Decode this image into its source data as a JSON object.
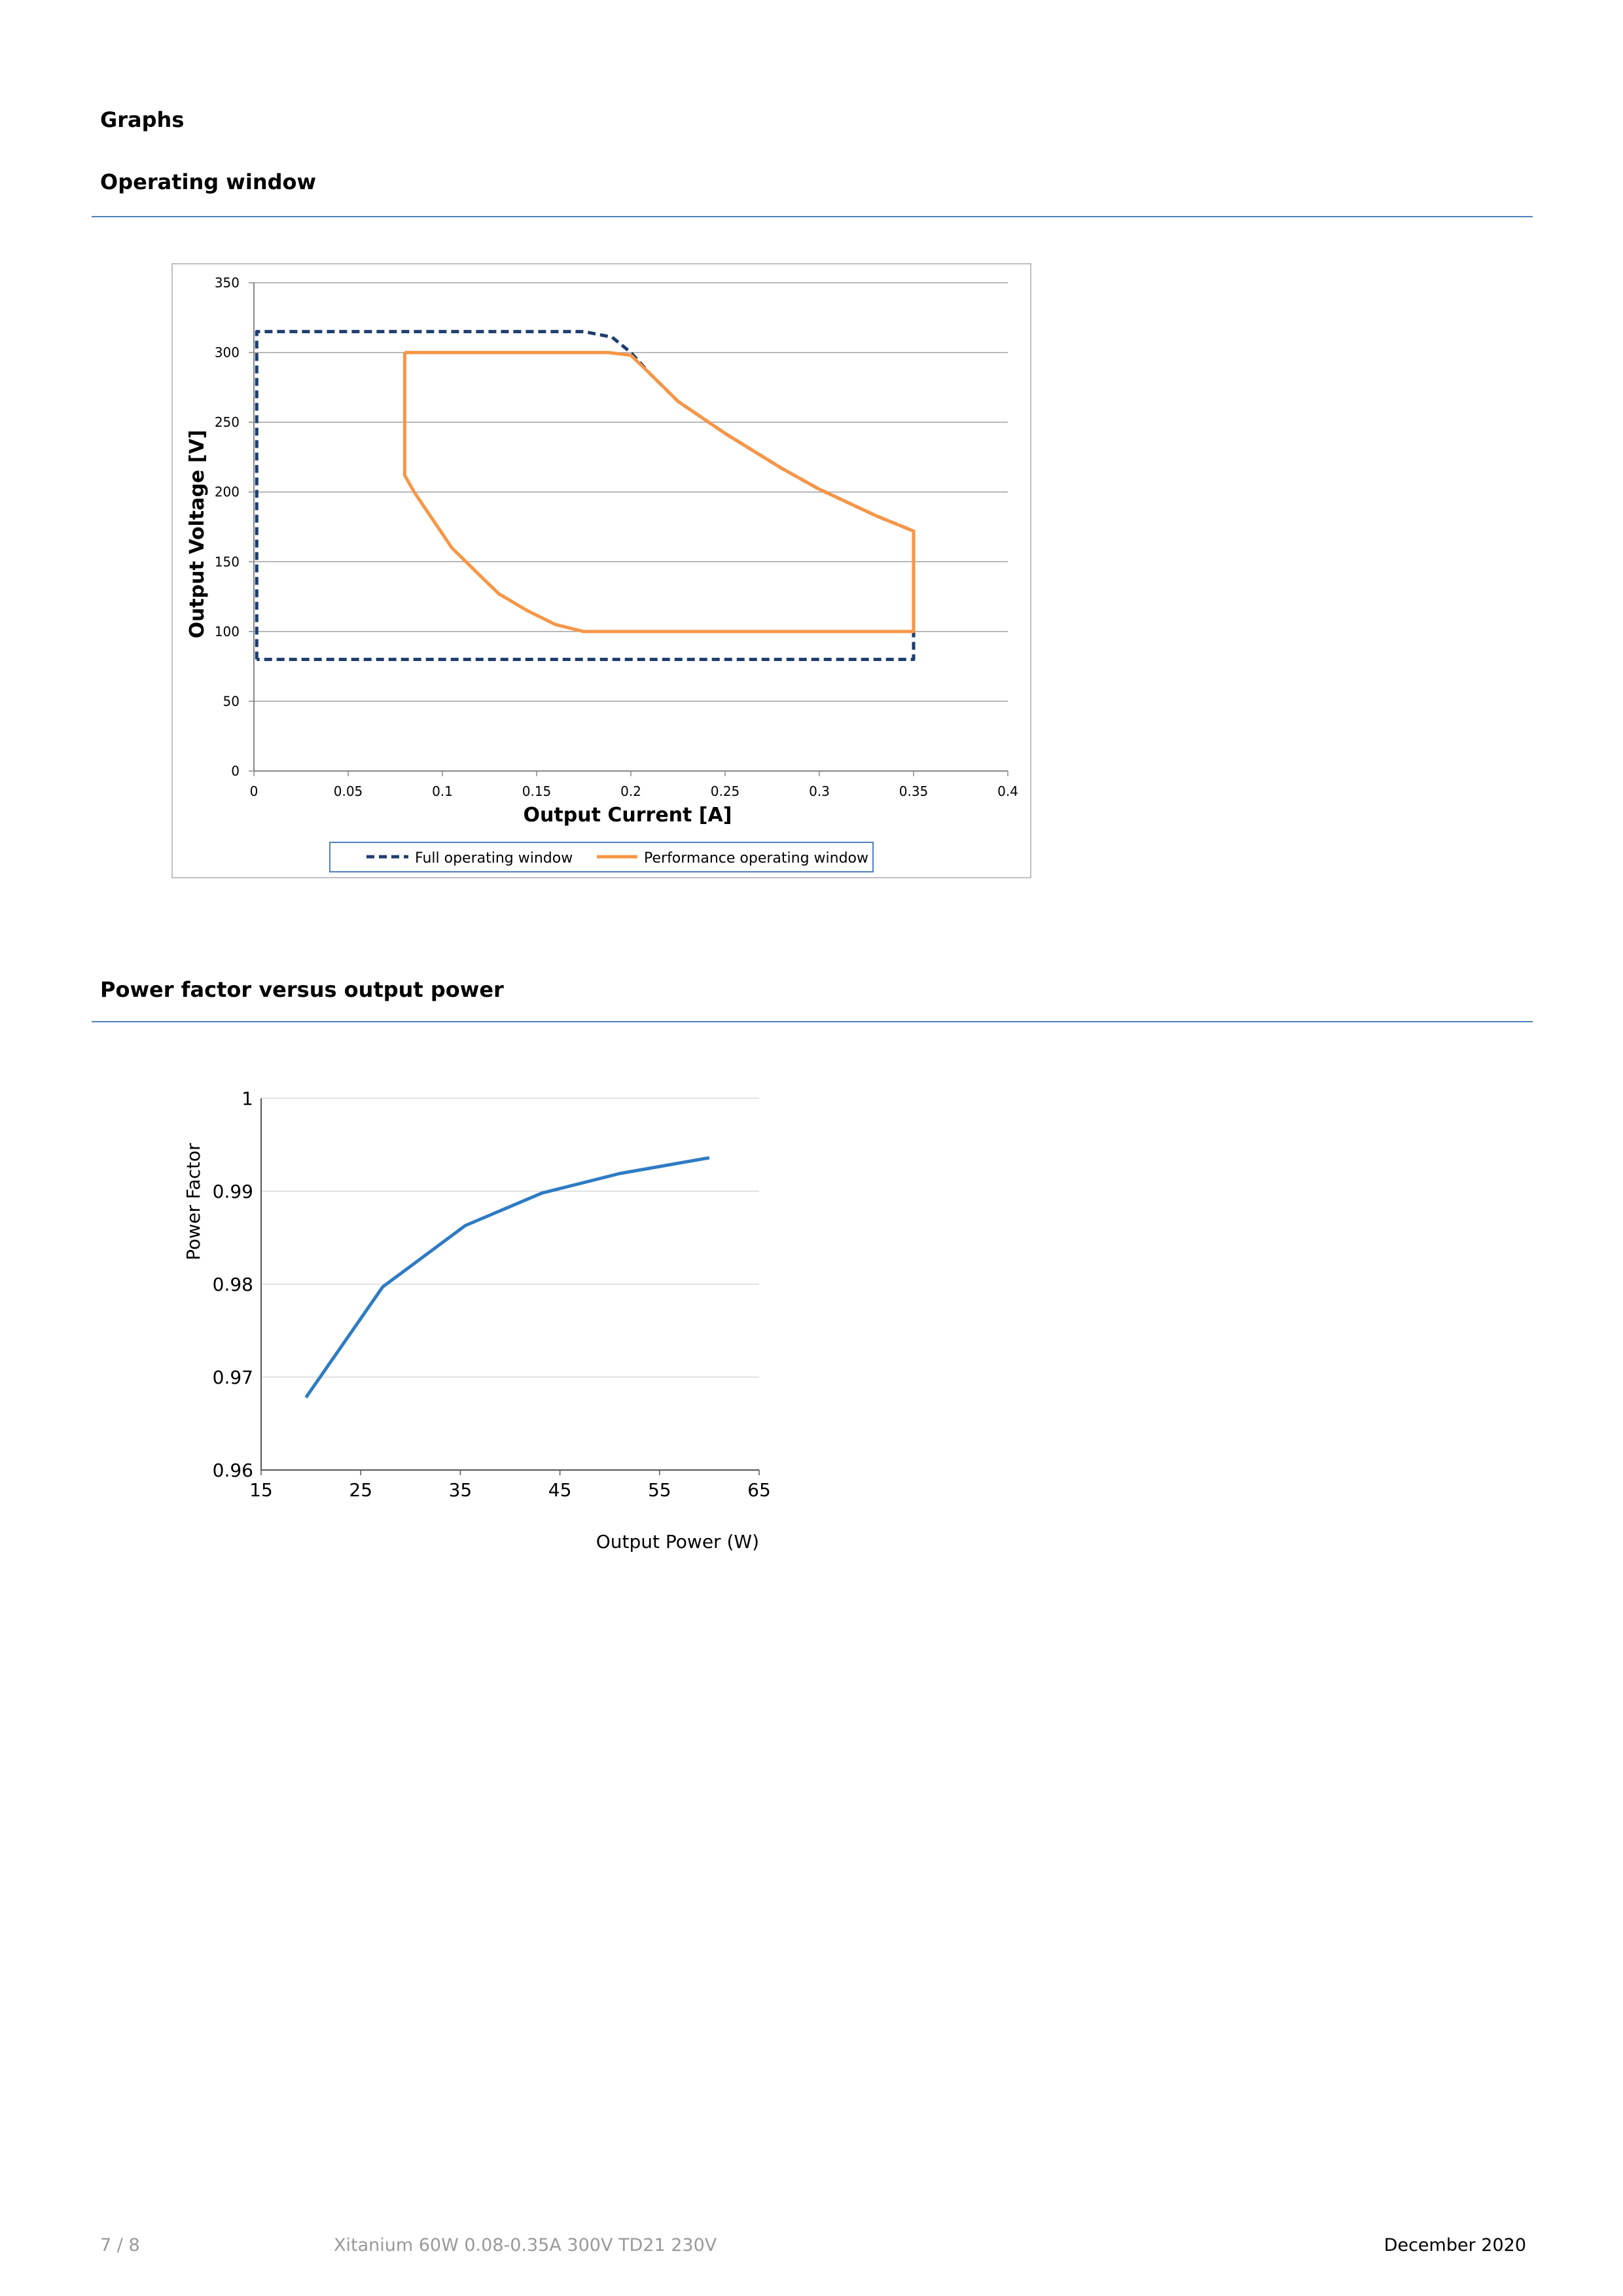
{
  "document": {
    "section_title": "Graphs",
    "chart1_heading": "Operating window",
    "chart2_heading": "Power factor versus output power"
  },
  "colors": {
    "rule": "#4f81bd",
    "full_window": "#1f3d6e",
    "performance_window": "#f79646",
    "pf_line": "#2e7bc4",
    "grid": "#a0a0a0"
  },
  "chart_data": [
    {
      "type": "line",
      "title": "",
      "xlabel": "Output Current [A]",
      "ylabel": "Output Voltage [V]",
      "xlim": [
        0,
        0.4
      ],
      "ylim": [
        0,
        350
      ],
      "x_ticks": [
        "0",
        "0.05",
        "0.1",
        "0.15",
        "0.2",
        "0.25",
        "0.3",
        "0.35",
        "0.4"
      ],
      "y_ticks": [
        "0",
        "50",
        "100",
        "150",
        "200",
        "250",
        "300",
        "350"
      ],
      "grid": true,
      "legend": "bottom",
      "series": [
        {
          "name": "Full operating window",
          "style": "dashed",
          "color": "#1f3d6e",
          "points": [
            [
              0.0015,
              80
            ],
            [
              0.0015,
              315
            ],
            [
              0.175,
              315
            ],
            [
              0.19,
              311
            ],
            [
              0.2,
              300
            ],
            [
              0.21,
              285
            ],
            [
              0.225,
              265
            ],
            [
              0.25,
              242
            ],
            [
              0.28,
              217
            ],
            [
              0.3,
              202
            ],
            [
              0.33,
              183
            ],
            [
              0.35,
              172
            ],
            [
              0.35,
              80
            ],
            [
              0.0015,
              80
            ]
          ]
        },
        {
          "name": "Performance operating window",
          "style": "solid",
          "color": "#f79646",
          "points": [
            [
              0.08,
              300
            ],
            [
              0.188,
              300
            ],
            [
              0.2,
              298
            ],
            [
              0.21,
              285
            ],
            [
              0.225,
              265
            ],
            [
              0.25,
              242
            ],
            [
              0.28,
              217
            ],
            [
              0.3,
              202
            ],
            [
              0.33,
              183
            ],
            [
              0.35,
              172
            ],
            [
              0.35,
              100
            ],
            [
              0.175,
              100
            ],
            [
              0.16,
              105
            ],
            [
              0.145,
              115
            ],
            [
              0.13,
              127
            ],
            [
              0.12,
              140
            ],
            [
              0.105,
              160
            ],
            [
              0.095,
              180
            ],
            [
              0.085,
              200
            ],
            [
              0.08,
              212
            ],
            [
              0.08,
              300
            ]
          ]
        }
      ]
    },
    {
      "type": "line",
      "title": "",
      "xlabel": "Output Power (W)",
      "ylabel": "Power Factor",
      "xlim": [
        15,
        65
      ],
      "ylim": [
        0.96,
        1
      ],
      "x_ticks": [
        "15",
        "25",
        "35",
        "45",
        "55",
        "65"
      ],
      "y_ticks": [
        "0.96",
        "0.97",
        "0.98",
        "0.99",
        "1"
      ],
      "grid": true,
      "series": [
        {
          "color": "#2e7bc4",
          "points": [
            [
              19.5,
              0.9678
            ],
            [
              27.2,
              0.9797
            ],
            [
              35.5,
              0.9863
            ],
            [
              43.2,
              0.9898
            ],
            [
              51,
              0.9919
            ],
            [
              60,
              0.9936
            ]
          ]
        }
      ]
    }
  ],
  "footer": {
    "page": "7 / 8",
    "product": "Xitanium 60W 0.08-0.35A 300V TD21 230V",
    "date": "December 2020"
  }
}
